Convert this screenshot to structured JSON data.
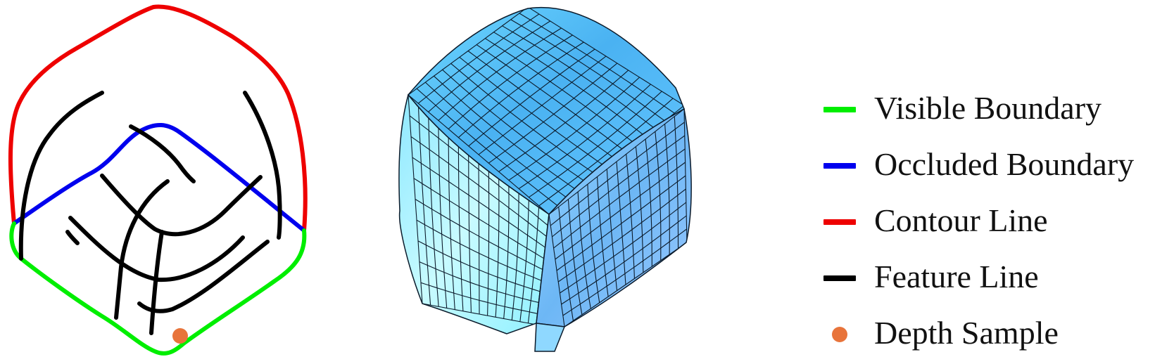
{
  "colors": {
    "visible_boundary": "#00ee00",
    "occluded_boundary": "#0000ee",
    "contour_line": "#ee0000",
    "feature_line": "#000000",
    "depth_sample": "#e8743b",
    "surface_light": "#aaf4ff",
    "surface_dark": "#5aa8f0",
    "mesh_line": "#0b1a2a"
  },
  "legend": {
    "items": [
      {
        "label": "Visible Boundary",
        "color": "#00ee00",
        "marker": "line"
      },
      {
        "label": "Occluded Boundary",
        "color": "#0000ee",
        "marker": "line"
      },
      {
        "label": "Contour Line",
        "color": "#ee0000",
        "marker": "line"
      },
      {
        "label": "Feature Line",
        "color": "#000000",
        "marker": "line"
      },
      {
        "label": "Depth Sample",
        "color": "#e8743b",
        "marker": "dot"
      }
    ]
  }
}
